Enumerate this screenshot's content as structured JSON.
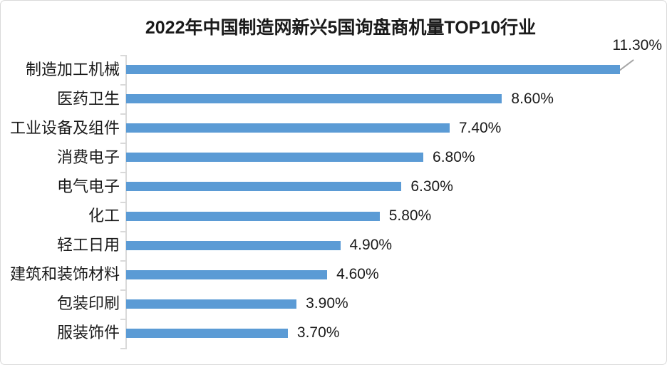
{
  "card": {
    "title": "2022年中国制造网新兴5国询盘商机量TOP10行业"
  },
  "chart_data": {
    "type": "bar",
    "orientation": "horizontal",
    "title": "2022年中国制造网新兴5国询盘商机量TOP10行业",
    "categories": [
      "制造加工机械",
      "医药卫生",
      "工业设备及组件",
      "消费电子",
      "电气电子",
      "化工",
      "轻工日用",
      "建筑和装饰材料",
      "包装印刷",
      "服装饰件"
    ],
    "values": [
      11.3,
      8.6,
      7.4,
      6.8,
      6.3,
      5.8,
      4.9,
      4.6,
      3.9,
      3.7
    ],
    "value_labels": [
      "11.30%",
      "8.60%",
      "7.40%",
      "6.80%",
      "6.30%",
      "5.80%",
      "4.90%",
      "4.60%",
      "3.90%",
      "3.70%"
    ],
    "xlabel": "",
    "ylabel": "",
    "xlim": [
      0,
      11.3
    ],
    "grid": false,
    "legend_position": "none",
    "bar_color": "#5b9bd5",
    "axis_color": "#d9d9d9",
    "label_color": "#1a1a1a",
    "leader_line_color": "#a6a6a6",
    "callout_index": 0
  }
}
